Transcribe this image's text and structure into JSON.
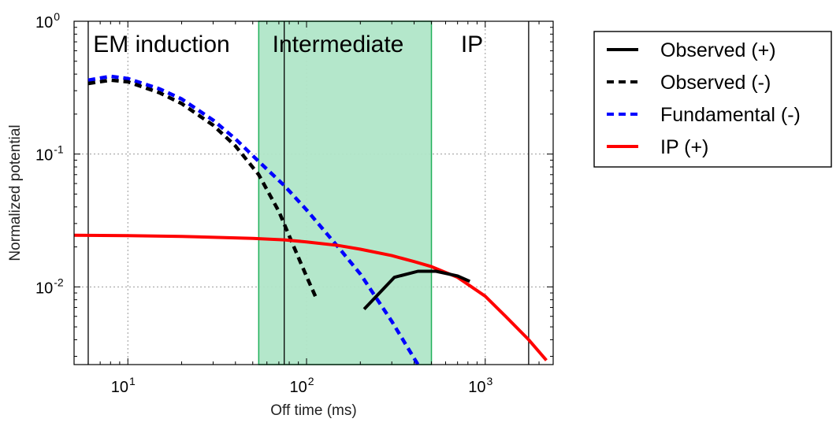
{
  "chart_data": {
    "type": "line",
    "title": "",
    "xlabel": "Off time (ms)",
    "ylabel": "Normalized potential",
    "xscale": "log",
    "yscale": "log",
    "xlim": [
      5,
      2400
    ],
    "ylim": [
      0.0026,
      1
    ],
    "grid": true,
    "legend_position": "outside-right",
    "x_ticks": [
      {
        "value": 10,
        "base": "10",
        "exp": "1"
      },
      {
        "value": 100,
        "base": "10",
        "exp": "2"
      },
      {
        "value": 1000,
        "base": "10",
        "exp": "3"
      }
    ],
    "y_ticks": [
      {
        "value": 1,
        "base": "10",
        "exp": "0"
      },
      {
        "value": 0.1,
        "base": "10",
        "exp": "-1"
      },
      {
        "value": 0.01,
        "base": "10",
        "exp": "-2"
      }
    ],
    "regions": [
      {
        "label": "EM induction",
        "from": 6,
        "to": 54
      },
      {
        "label": "Intermediate",
        "from": 54,
        "to": 500,
        "color": "#b0e6c8",
        "edge": "#1fb05a"
      },
      {
        "label": "IP",
        "from": 500,
        "to": 1750
      }
    ],
    "vlines": [
      6,
      75,
      1750
    ],
    "series": [
      {
        "name": "Observed (+)",
        "style": "solid",
        "color": "#000000",
        "x": [
          210,
          310,
          420,
          530,
          700,
          820
        ],
        "y": [
          0.0068,
          0.0118,
          0.0131,
          0.0131,
          0.0121,
          0.011
        ]
      },
      {
        "name": "Observed (-)",
        "style": "dashed",
        "color": "#000000",
        "x": [
          6,
          8,
          10,
          15,
          20,
          30,
          40,
          54,
          70,
          85,
          100,
          112
        ],
        "y": [
          0.34,
          0.36,
          0.35,
          0.29,
          0.24,
          0.165,
          0.115,
          0.07,
          0.037,
          0.02,
          0.012,
          0.0085
        ]
      },
      {
        "name": "Fundamental (-)",
        "style": "dashed",
        "color": "#0000ff",
        "x": [
          6,
          8,
          10,
          15,
          20,
          30,
          40,
          54,
          75,
          100,
          150,
          200,
          300,
          420
        ],
        "y": [
          0.36,
          0.385,
          0.37,
          0.31,
          0.26,
          0.18,
          0.13,
          0.088,
          0.058,
          0.038,
          0.02,
          0.0125,
          0.0055,
          0.0026
        ]
      },
      {
        "name": "IP (+)",
        "style": "solid",
        "color": "#ff0000",
        "x": [
          5,
          10,
          20,
          50,
          75,
          100,
          150,
          200,
          300,
          400,
          500,
          700,
          1000,
          1300,
          1750,
          2200
        ],
        "y": [
          0.0245,
          0.0243,
          0.024,
          0.0232,
          0.0226,
          0.0218,
          0.0205,
          0.0192,
          0.0172,
          0.0155,
          0.0142,
          0.0118,
          0.0085,
          0.006,
          0.004,
          0.0028
        ]
      }
    ]
  }
}
